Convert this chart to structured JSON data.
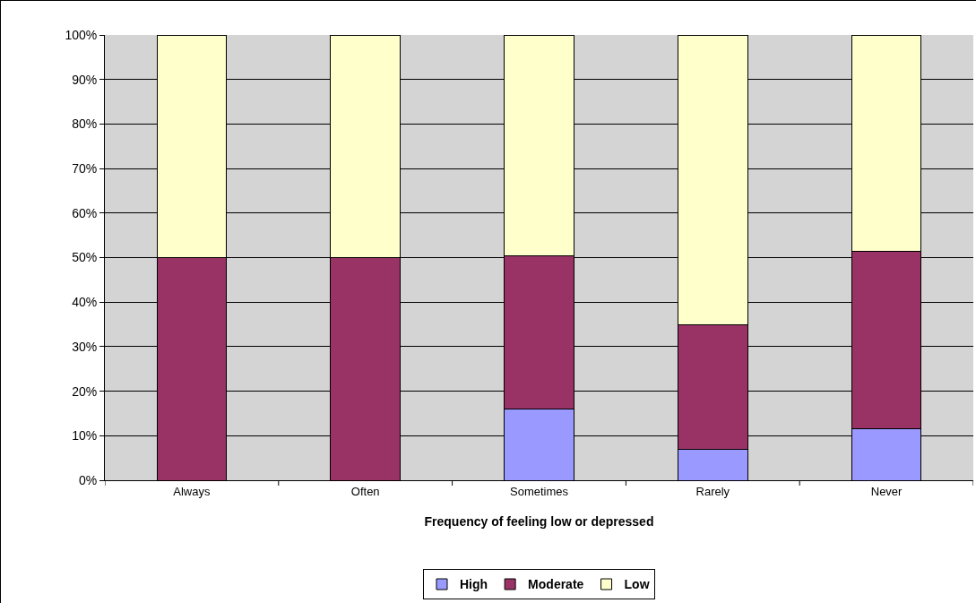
{
  "chart_data": {
    "type": "bar",
    "stacked": true,
    "xlabel": "Frequency of feeling low or depressed",
    "categories": [
      "Always",
      "Often",
      "Sometimes",
      "Rarely",
      "Never"
    ],
    "series": [
      {
        "name": "High",
        "color": "#9999ff",
        "values": [
          0,
          0,
          16,
          7,
          11.5
        ]
      },
      {
        "name": "Moderate",
        "color": "#993366",
        "values": [
          50,
          50,
          34.5,
          28,
          40
        ]
      },
      {
        "name": "Low",
        "color": "#ffffcc",
        "values": [
          50,
          50,
          49.5,
          65,
          48.5
        ]
      }
    ],
    "ylim": [
      0,
      100
    ],
    "yticks": [
      {
        "value": 0,
        "label": "0%"
      },
      {
        "value": 10,
        "label": "10%"
      },
      {
        "value": 20,
        "label": "20%"
      },
      {
        "value": 30,
        "label": "30%"
      },
      {
        "value": 40,
        "label": "40%"
      },
      {
        "value": 50,
        "label": "50%"
      },
      {
        "value": 60,
        "label": "60%"
      },
      {
        "value": 70,
        "label": "70%"
      },
      {
        "value": 80,
        "label": "80%"
      },
      {
        "value": 90,
        "label": "90%"
      },
      {
        "value": 100,
        "label": "100%"
      }
    ],
    "grid": "y",
    "legend": "bottom"
  }
}
